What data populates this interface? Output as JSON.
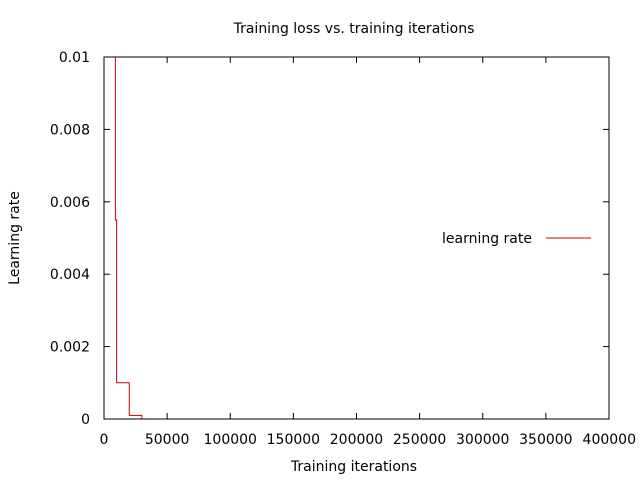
{
  "chart_data": {
    "type": "line",
    "title": "Training loss vs. training iterations",
    "xlabel": "Training iterations",
    "ylabel": "Learning rate",
    "xlim": [
      0,
      400000
    ],
    "ylim": [
      0,
      0.01
    ],
    "x_ticks": [
      "0",
      "50000",
      "100000",
      "150000",
      "200000",
      "250000",
      "300000",
      "350000",
      "400000"
    ],
    "y_ticks": [
      "0",
      "0.002",
      "0.004",
      "0.006",
      "0.008",
      "0.01"
    ],
    "legend_position": "right",
    "grid": false,
    "series": [
      {
        "name": "learning rate",
        "color": "#cc0000",
        "step": true,
        "x": [
          9000,
          9000,
          10000,
          10000,
          20000,
          20000,
          30000,
          30000
        ],
        "y": [
          0.01,
          0.0055,
          0.0055,
          0.001,
          0.001,
          0.0001,
          0.0001,
          1e-05
        ]
      }
    ]
  }
}
